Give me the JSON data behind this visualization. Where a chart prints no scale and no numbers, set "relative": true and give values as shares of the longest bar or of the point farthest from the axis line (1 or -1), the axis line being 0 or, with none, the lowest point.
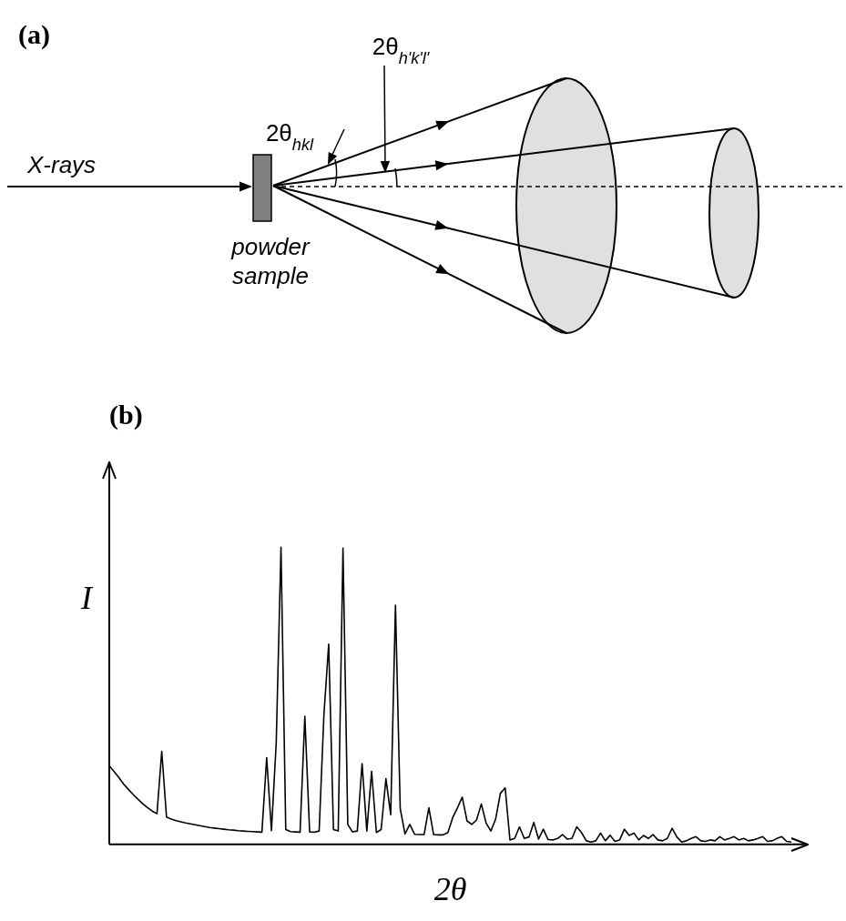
{
  "chart_data": {
    "type": "line",
    "title": "(b)",
    "xlabel": "2θ",
    "ylabel": "I",
    "relative": true,
    "annotations": [
      "(a)",
      "X-rays",
      "powder sample",
      "2θ$_{hkl}$",
      "2θ$_{h'k'l'}$"
    ],
    "categories": [
      null,
      null,
      null,
      null,
      null,
      null,
      null,
      null,
      null,
      null,
      null,
      null,
      null,
      null,
      null,
      null,
      null,
      null,
      null,
      null,
      null,
      null,
      null,
      null,
      null,
      null,
      null,
      null,
      null,
      null,
      null,
      null,
      null,
      null,
      null,
      null,
      null,
      null,
      null,
      null,
      null,
      null,
      null,
      null,
      null,
      null,
      null,
      null,
      null,
      null,
      null,
      null,
      null,
      null,
      null,
      null,
      null,
      null,
      null,
      null,
      null,
      null,
      null,
      null,
      null,
      null,
      null,
      null,
      null,
      null,
      null,
      null,
      null,
      null,
      null,
      null,
      null,
      null,
      null,
      null,
      null,
      null,
      null,
      null,
      null,
      null,
      null,
      null,
      null,
      null,
      null,
      null,
      null,
      null,
      null,
      null,
      null,
      null,
      null,
      null,
      null,
      null,
      null,
      null,
      null,
      null,
      null,
      null,
      null,
      null,
      null,
      null,
      null,
      null,
      null,
      null,
      null,
      null,
      null,
      null,
      null,
      null,
      null,
      null,
      null,
      null,
      null,
      null,
      null,
      null,
      null,
      null,
      null,
      null,
      null,
      null,
      null,
      null,
      null,
      null,
      null,
      null,
      null,
      null
    ],
    "series": [
      {
        "color": "#000000",
        "values": [
          0.264,
          0.245,
          0.225,
          0.203,
          0.185,
          0.168,
          0.152,
          0.137,
          0.124,
          0.112,
          0.103,
          0.313,
          0.092,
          0.085,
          0.08,
          0.076,
          0.072,
          0.069,
          0.066,
          0.063,
          0.06,
          0.057,
          0.055,
          0.053,
          0.051,
          0.049,
          0.048,
          0.046,
          0.045,
          0.044,
          0.043,
          0.042,
          0.041,
          0.292,
          0.046,
          0.341,
          1.0,
          0.05,
          0.043,
          0.042,
          0.041,
          0.431,
          0.042,
          0.041,
          0.045,
          0.436,
          0.674,
          0.05,
          0.045,
          0.997,
          0.067,
          0.042,
          0.045,
          0.272,
          0.045,
          0.246,
          0.04,
          0.05,
          0.221,
          0.1,
          0.805,
          0.12,
          0.035,
          0.067,
          0.034,
          0.033,
          0.033,
          0.123,
          0.033,
          0.032,
          0.032,
          0.04,
          0.09,
          0.123,
          0.159,
          0.079,
          0.067,
          0.082,
          0.136,
          0.072,
          0.045,
          0.085,
          0.172,
          0.19,
          0.015,
          0.02,
          0.059,
          0.02,
          0.025,
          0.074,
          0.018,
          0.051,
          0.016,
          0.015,
          0.02,
          0.033,
          0.018,
          0.02,
          0.059,
          0.04,
          0.012,
          0.008,
          0.012,
          0.038,
          0.012,
          0.031,
          0.01,
          0.015,
          0.051,
          0.03,
          0.038,
          0.015,
          0.03,
          0.02,
          0.033,
          0.015,
          0.012,
          0.02,
          0.054,
          0.025,
          0.008,
          0.012,
          0.02,
          0.026,
          0.012,
          0.01,
          0.015,
          0.012,
          0.026,
          0.015,
          0.02,
          0.026,
          0.015,
          0.02,
          0.012,
          0.015,
          0.02,
          0.026,
          0.01,
          0.012,
          0.02,
          0.026,
          0.01,
          0.008
        ]
      }
    ]
  }
}
